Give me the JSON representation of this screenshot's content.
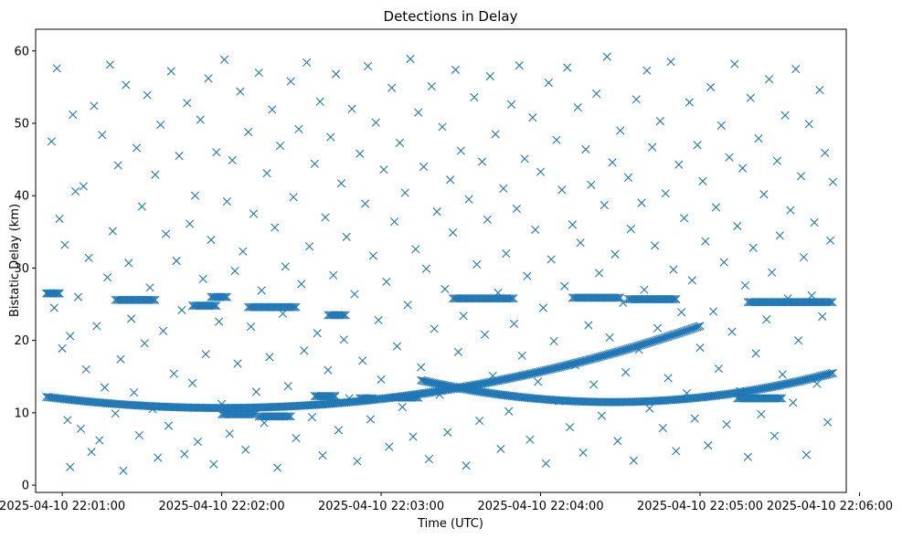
{
  "chart_data": {
    "type": "scatter",
    "title": "Detections in Delay",
    "xlabel": "Time (UTC)",
    "ylabel": "Bistatic Delay (km)",
    "x_unit": "seconds after 2025-04-10 22:00:00 UTC",
    "xlim_seconds": [
      50,
      355
    ],
    "ylim": [
      -1,
      63
    ],
    "x_ticks": [
      {
        "value": 60,
        "label": "2025-04-10 22:01:00"
      },
      {
        "value": 120,
        "label": "2025-04-10 22:02:00"
      },
      {
        "value": 180,
        "label": "2025-04-10 22:03:00"
      },
      {
        "value": 240,
        "label": "2025-04-10 22:04:00"
      },
      {
        "value": 300,
        "label": "2025-04-10 22:05:00"
      },
      {
        "value": 360,
        "label": "2025-04-10 22:06:00"
      }
    ],
    "y_ticks": [
      0,
      10,
      20,
      30,
      40,
      50,
      60
    ],
    "grid": false,
    "legend": false,
    "marker": "x",
    "color": "#1f77b4",
    "tracks": [
      {
        "shape": "quadratic",
        "x_start": 54,
        "x_end": 300,
        "y_start": 12.2,
        "y_mid": 11.8,
        "y_end": 22.0,
        "step": 0.6
      },
      {
        "shape": "quadratic",
        "x_start": 195,
        "x_end": 350,
        "y_start": 14.5,
        "y_mid": 11.5,
        "y_end": 15.5,
        "step": 0.6
      },
      {
        "shape": "segment",
        "x_start": 54,
        "x_end": 59,
        "y": 26.5,
        "step": 0.5
      },
      {
        "shape": "segment",
        "x_start": 80,
        "x_end": 95,
        "y": 25.6,
        "step": 0.6
      },
      {
        "shape": "segment",
        "x_start": 109,
        "x_end": 118,
        "y": 24.8,
        "step": 0.6
      },
      {
        "shape": "segment",
        "x_start": 116,
        "x_end": 122,
        "y": 26.0,
        "step": 0.6
      },
      {
        "shape": "segment",
        "x_start": 130,
        "x_end": 148,
        "y": 24.6,
        "step": 0.6
      },
      {
        "shape": "segment",
        "x_start": 160,
        "x_end": 167,
        "y": 23.5,
        "step": 0.6
      },
      {
        "shape": "segment",
        "x_start": 207,
        "x_end": 230,
        "y": 25.8,
        "step": 0.6
      },
      {
        "shape": "segment",
        "x_start": 252,
        "x_end": 270,
        "y": 25.9,
        "step": 0.6
      },
      {
        "shape": "segment",
        "x_start": 273,
        "x_end": 291,
        "y": 25.7,
        "step": 0.6
      },
      {
        "shape": "segment",
        "x_start": 318,
        "x_end": 350,
        "y": 25.3,
        "step": 0.6
      },
      {
        "shape": "segment",
        "x_start": 120,
        "x_end": 133,
        "y": 9.8,
        "step": 0.6
      },
      {
        "shape": "segment",
        "x_start": 134,
        "x_end": 146,
        "y": 9.5,
        "step": 0.6
      },
      {
        "shape": "segment",
        "x_start": 155,
        "x_end": 163,
        "y": 12.3,
        "step": 0.6
      },
      {
        "shape": "segment",
        "x_start": 172,
        "x_end": 177,
        "y": 12.0,
        "step": 0.6
      },
      {
        "shape": "segment",
        "x_start": 185,
        "x_end": 194,
        "y": 12.1,
        "step": 0.6
      },
      {
        "shape": "segment",
        "x_start": 314,
        "x_end": 331,
        "y": 12.0,
        "step": 0.6
      }
    ],
    "scatter_points": [
      [
        56,
        47.5
      ],
      [
        57,
        24.5
      ],
      [
        58,
        57.6
      ],
      [
        59,
        36.8
      ],
      [
        60,
        18.9
      ],
      [
        61,
        33.2
      ],
      [
        62,
        9.0
      ],
      [
        63,
        2.5
      ],
      [
        63,
        20.6
      ],
      [
        64,
        51.2
      ],
      [
        65,
        40.6
      ],
      [
        66,
        26.0
      ],
      [
        67,
        7.8
      ],
      [
        68,
        41.3
      ],
      [
        69,
        16.0
      ],
      [
        70,
        31.4
      ],
      [
        71,
        4.6
      ],
      [
        72,
        52.4
      ],
      [
        73,
        22.0
      ],
      [
        74,
        6.2
      ],
      [
        75,
        48.4
      ],
      [
        76,
        13.5
      ],
      [
        77,
        28.7
      ],
      [
        78,
        58.1
      ],
      [
        79,
        35.1
      ],
      [
        80,
        9.9
      ],
      [
        81,
        44.2
      ],
      [
        82,
        17.4
      ],
      [
        83,
        2.0
      ],
      [
        84,
        55.3
      ],
      [
        85,
        30.7
      ],
      [
        86,
        23.0
      ],
      [
        87,
        12.8
      ],
      [
        88,
        46.6
      ],
      [
        89,
        6.9
      ],
      [
        90,
        38.5
      ],
      [
        91,
        19.6
      ],
      [
        92,
        53.9
      ],
      [
        93,
        27.3
      ],
      [
        94,
        10.5
      ],
      [
        95,
        42.9
      ],
      [
        96,
        3.8
      ],
      [
        97,
        49.8
      ],
      [
        98,
        21.3
      ],
      [
        99,
        34.7
      ],
      [
        100,
        8.2
      ],
      [
        101,
        57.2
      ],
      [
        102,
        15.4
      ],
      [
        103,
        31.0
      ],
      [
        104,
        45.5
      ],
      [
        105,
        24.2
      ],
      [
        106,
        4.3
      ],
      [
        107,
        52.8
      ],
      [
        108,
        36.1
      ],
      [
        109,
        14.1
      ],
      [
        110,
        40.0
      ],
      [
        111,
        6.0
      ],
      [
        112,
        50.5
      ],
      [
        113,
        28.5
      ],
      [
        114,
        18.1
      ],
      [
        115,
        56.2
      ],
      [
        116,
        33.9
      ],
      [
        117,
        2.9
      ],
      [
        118,
        46.0
      ],
      [
        119,
        22.6
      ],
      [
        120,
        11.2
      ],
      [
        121,
        58.8
      ],
      [
        122,
        39.2
      ],
      [
        123,
        7.1
      ],
      [
        124,
        44.9
      ],
      [
        125,
        29.6
      ],
      [
        126,
        16.8
      ],
      [
        127,
        54.4
      ],
      [
        128,
        32.3
      ],
      [
        129,
        4.9
      ],
      [
        130,
        48.8
      ],
      [
        131,
        21.9
      ],
      [
        132,
        37.5
      ],
      [
        133,
        12.9
      ],
      [
        134,
        57.0
      ],
      [
        135,
        26.9
      ],
      [
        136,
        8.6
      ],
      [
        137,
        43.1
      ],
      [
        138,
        17.7
      ],
      [
        139,
        51.9
      ],
      [
        140,
        35.6
      ],
      [
        141,
        2.4
      ],
      [
        142,
        46.9
      ],
      [
        143,
        23.7
      ],
      [
        144,
        30.2
      ],
      [
        145,
        13.7
      ],
      [
        146,
        55.8
      ],
      [
        147,
        39.8
      ],
      [
        148,
        6.5
      ],
      [
        149,
        49.2
      ],
      [
        150,
        27.8
      ],
      [
        151,
        18.6
      ],
      [
        152,
        58.4
      ],
      [
        153,
        33.0
      ],
      [
        154,
        9.4
      ],
      [
        155,
        44.4
      ],
      [
        156,
        21.0
      ],
      [
        157,
        53.0
      ],
      [
        158,
        4.1
      ],
      [
        159,
        37.0
      ],
      [
        160,
        15.9
      ],
      [
        161,
        48.1
      ],
      [
        162,
        29.0
      ],
      [
        163,
        56.8
      ],
      [
        164,
        7.6
      ],
      [
        165,
        41.7
      ],
      [
        166,
        20.1
      ],
      [
        167,
        34.3
      ],
      [
        168,
        12.0
      ],
      [
        169,
        52.0
      ],
      [
        170,
        26.4
      ],
      [
        171,
        3.3
      ],
      [
        172,
        45.8
      ],
      [
        173,
        17.2
      ],
      [
        174,
        38.9
      ],
      [
        175,
        57.9
      ],
      [
        176,
        9.1
      ],
      [
        177,
        31.7
      ],
      [
        178,
        50.1
      ],
      [
        179,
        22.8
      ],
      [
        180,
        14.6
      ],
      [
        181,
        43.6
      ],
      [
        182,
        28.1
      ],
      [
        183,
        5.3
      ],
      [
        184,
        54.9
      ],
      [
        185,
        36.4
      ],
      [
        186,
        19.2
      ],
      [
        187,
        47.3
      ],
      [
        188,
        10.8
      ],
      [
        189,
        40.4
      ],
      [
        190,
        24.9
      ],
      [
        191,
        58.9
      ],
      [
        192,
        6.7
      ],
      [
        193,
        32.6
      ],
      [
        194,
        51.5
      ],
      [
        195,
        16.3
      ],
      [
        196,
        44.0
      ],
      [
        197,
        29.9
      ],
      [
        198,
        3.6
      ],
      [
        199,
        55.1
      ],
      [
        200,
        21.6
      ],
      [
        201,
        37.8
      ],
      [
        202,
        12.5
      ],
      [
        203,
        49.5
      ],
      [
        204,
        27.1
      ],
      [
        205,
        7.3
      ],
      [
        206,
        42.2
      ],
      [
        207,
        34.9
      ],
      [
        208,
        57.4
      ],
      [
        209,
        18.4
      ],
      [
        210,
        46.2
      ],
      [
        211,
        23.4
      ],
      [
        212,
        2.7
      ],
      [
        213,
        39.5
      ],
      [
        214,
        13.3
      ],
      [
        215,
        53.6
      ],
      [
        216,
        30.5
      ],
      [
        217,
        8.9
      ],
      [
        218,
        44.7
      ],
      [
        219,
        20.8
      ],
      [
        220,
        36.7
      ],
      [
        221,
        56.5
      ],
      [
        222,
        15.1
      ],
      [
        223,
        48.5
      ],
      [
        224,
        26.6
      ],
      [
        225,
        5.0
      ],
      [
        226,
        41.0
      ],
      [
        227,
        32.0
      ],
      [
        228,
        10.2
      ],
      [
        229,
        52.6
      ],
      [
        230,
        22.3
      ],
      [
        231,
        38.2
      ],
      [
        232,
        58.0
      ],
      [
        233,
        17.9
      ],
      [
        234,
        45.1
      ],
      [
        235,
        28.9
      ],
      [
        236,
        6.3
      ],
      [
        237,
        50.8
      ],
      [
        238,
        35.3
      ],
      [
        239,
        14.3
      ],
      [
        240,
        43.3
      ],
      [
        241,
        24.5
      ],
      [
        242,
        3.0
      ],
      [
        243,
        55.6
      ],
      [
        244,
        31.2
      ],
      [
        245,
        19.9
      ],
      [
        246,
        47.7
      ],
      [
        247,
        11.6
      ],
      [
        248,
        40.8
      ],
      [
        249,
        27.5
      ],
      [
        250,
        57.7
      ],
      [
        251,
        8.0
      ],
      [
        252,
        36.0
      ],
      [
        253,
        16.6
      ],
      [
        254,
        52.2
      ],
      [
        255,
        33.5
      ],
      [
        256,
        4.5
      ],
      [
        257,
        46.4
      ],
      [
        258,
        22.1
      ],
      [
        259,
        41.5
      ],
      [
        260,
        13.9
      ],
      [
        261,
        54.1
      ],
      [
        262,
        29.3
      ],
      [
        263,
        9.6
      ],
      [
        264,
        38.7
      ],
      [
        265,
        59.2
      ],
      [
        266,
        20.4
      ],
      [
        267,
        44.6
      ],
      [
        268,
        31.9
      ],
      [
        269,
        6.1
      ],
      [
        270,
        49.0
      ],
      [
        271,
        25.2
      ],
      [
        272,
        15.6
      ],
      [
        273,
        42.5
      ],
      [
        274,
        35.4
      ],
      [
        275,
        3.4
      ],
      [
        276,
        53.3
      ],
      [
        277,
        18.7
      ],
      [
        278,
        39.0
      ],
      [
        279,
        27.0
      ],
      [
        280,
        57.3
      ],
      [
        281,
        10.6
      ],
      [
        282,
        46.7
      ],
      [
        283,
        33.1
      ],
      [
        284,
        21.7
      ],
      [
        285,
        50.3
      ],
      [
        286,
        7.9
      ],
      [
        287,
        40.3
      ],
      [
        288,
        14.8
      ],
      [
        289,
        58.5
      ],
      [
        290,
        29.8
      ],
      [
        291,
        4.7
      ],
      [
        292,
        44.3
      ],
      [
        293,
        23.9
      ],
      [
        294,
        36.9
      ],
      [
        295,
        12.7
      ],
      [
        296,
        52.9
      ],
      [
        297,
        28.3
      ],
      [
        298,
        9.2
      ],
      [
        299,
        47.0
      ],
      [
        300,
        19.0
      ],
      [
        301,
        42.0
      ],
      [
        302,
        33.7
      ],
      [
        303,
        5.5
      ],
      [
        304,
        55.0
      ],
      [
        305,
        24.0
      ],
      [
        306,
        38.4
      ],
      [
        307,
        16.1
      ],
      [
        308,
        49.7
      ],
      [
        309,
        30.8
      ],
      [
        310,
        8.4
      ],
      [
        311,
        45.3
      ],
      [
        312,
        21.2
      ],
      [
        313,
        58.2
      ],
      [
        314,
        35.8
      ],
      [
        315,
        13.0
      ],
      [
        316,
        43.8
      ],
      [
        317,
        27.6
      ],
      [
        318,
        3.9
      ],
      [
        319,
        53.5
      ],
      [
        320,
        32.8
      ],
      [
        321,
        18.2
      ],
      [
        322,
        47.9
      ],
      [
        323,
        9.8
      ],
      [
        324,
        40.2
      ],
      [
        325,
        22.9
      ],
      [
        326,
        56.1
      ],
      [
        327,
        29.4
      ],
      [
        328,
        6.8
      ],
      [
        329,
        44.8
      ],
      [
        330,
        34.5
      ],
      [
        331,
        15.3
      ],
      [
        332,
        51.1
      ],
      [
        333,
        25.8
      ],
      [
        334,
        38.0
      ],
      [
        335,
        11.4
      ],
      [
        336,
        57.5
      ],
      [
        337,
        20.0
      ],
      [
        338,
        42.7
      ],
      [
        339,
        31.5
      ],
      [
        340,
        4.2
      ],
      [
        341,
        49.9
      ],
      [
        342,
        26.2
      ],
      [
        343,
        36.3
      ],
      [
        344,
        14.0
      ],
      [
        345,
        54.6
      ],
      [
        346,
        23.3
      ],
      [
        347,
        45.9
      ],
      [
        348,
        8.7
      ],
      [
        349,
        33.8
      ],
      [
        350,
        41.9
      ]
    ]
  }
}
